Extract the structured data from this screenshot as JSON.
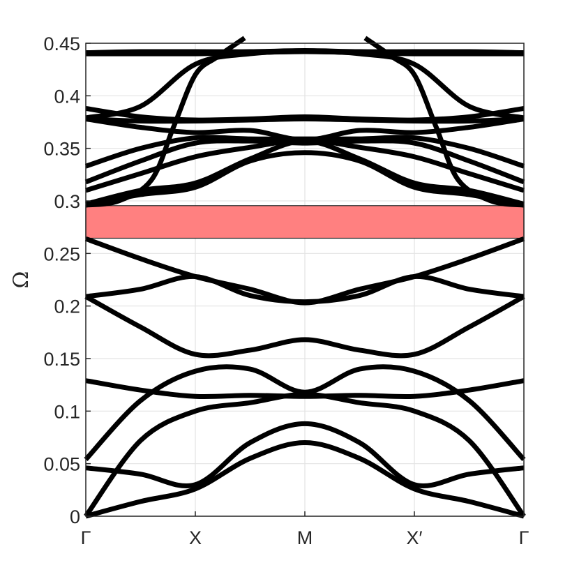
{
  "chart_data": {
    "type": "line",
    "title": "",
    "xlabel": "",
    "ylabel": "Ω",
    "ylim": [
      0,
      0.45
    ],
    "grid": true,
    "x_ticks": [
      {
        "pos": 0,
        "label": "Γ"
      },
      {
        "pos": 1,
        "label": "X"
      },
      {
        "pos": 2,
        "label": "M"
      },
      {
        "pos": 3,
        "label": "X′"
      },
      {
        "pos": 4,
        "label": "Γ"
      }
    ],
    "y_ticks": [
      {
        "value": 0,
        "label": "0"
      },
      {
        "value": 0.05,
        "label": "0.05"
      },
      {
        "value": 0.1,
        "label": "0.1"
      },
      {
        "value": 0.15,
        "label": "0.15"
      },
      {
        "value": 0.2,
        "label": "0.2"
      },
      {
        "value": 0.25,
        "label": "0.25"
      },
      {
        "value": 0.3,
        "label": "0.3"
      },
      {
        "value": 0.35,
        "label": "0.35"
      },
      {
        "value": 0.4,
        "label": "0.4"
      },
      {
        "value": 0.45,
        "label": "0.45"
      }
    ],
    "band_gap": {
      "ymin": 0.2645,
      "ymax": 0.2955,
      "color": "#ff8080"
    },
    "line_color": "#000000",
    "x": [
      0,
      0.5,
      1,
      1.5,
      2,
      2.5,
      3,
      3.5,
      4
    ],
    "series": [
      {
        "values": [
          0,
          0.014,
          0.026,
          0.055,
          0.07,
          0.055,
          0.026,
          0.014,
          0
        ]
      },
      {
        "values": [
          0,
          0.072,
          0.1,
          0.108,
          0.116,
          0.108,
          0.1,
          0.072,
          0
        ]
      },
      {
        "values": [
          0.046,
          0.04,
          0.03,
          0.07,
          0.088,
          0.07,
          0.03,
          0.04,
          0.046
        ]
      },
      {
        "values": [
          0.054,
          0.11,
          0.138,
          0.14,
          0.118,
          0.14,
          0.138,
          0.11,
          0.054
        ]
      },
      {
        "values": [
          0.129,
          0.12,
          0.114,
          0.115,
          0.114,
          0.115,
          0.114,
          0.12,
          0.129
        ]
      },
      {
        "values": [
          0.209,
          0.18,
          0.154,
          0.158,
          0.168,
          0.158,
          0.154,
          0.18,
          0.209
        ]
      },
      {
        "values": [
          0.209,
          0.216,
          0.228,
          0.21,
          0.204,
          0.21,
          0.228,
          0.216,
          0.209
        ]
      },
      {
        "values": [
          0.264,
          0.245,
          0.228,
          0.216,
          0.203,
          0.216,
          0.228,
          0.245,
          0.264
        ]
      },
      {
        "values": [
          0.296,
          0.306,
          0.313,
          0.338,
          0.346,
          0.338,
          0.313,
          0.306,
          0.296
        ]
      },
      {
        "values": [
          0.297,
          0.31,
          0.317,
          0.34,
          0.357,
          0.34,
          0.317,
          0.31,
          0.297
        ]
      },
      {
        "values": [
          0.31,
          0.326,
          0.342,
          0.351,
          0.358,
          0.351,
          0.342,
          0.326,
          0.31
        ]
      },
      {
        "values": [
          0.318,
          0.338,
          0.355,
          0.357,
          0.355,
          0.357,
          0.355,
          0.338,
          0.318
        ]
      },
      {
        "values": [
          0.333,
          0.35,
          0.36,
          0.359,
          0.359,
          0.359,
          0.36,
          0.35,
          0.333
        ]
      },
      {
        "values": [
          0.378,
          0.37,
          0.365,
          0.367,
          0.358,
          0.367,
          0.365,
          0.37,
          0.378
        ]
      },
      {
        "values": [
          0.378,
          0.376,
          0.376,
          0.377,
          0.378,
          0.377,
          0.376,
          0.376,
          0.378
        ]
      },
      {
        "values": [
          0.388,
          0.38,
          0.377,
          0.378,
          0.38,
          0.378,
          0.377,
          0.38,
          0.388
        ]
      },
      {
        "values": [
          0.44,
          0.44,
          0.44,
          0.441,
          0.442,
          0.441,
          0.44,
          0.44,
          0.44
        ]
      },
      {
        "values": [
          0.441,
          0.442,
          0.442,
          0.442,
          0.443,
          0.442,
          0.442,
          0.442,
          0.441
        ]
      },
      {
        "values": [
          0.379,
          0.39,
          0.43,
          0.44,
          0.442,
          0.44,
          0.43,
          0.39,
          0.379
        ]
      },
      {
        "x": [
          0,
          0.3,
          0.6,
          0.8,
          1,
          1.2,
          1.45
        ],
        "values": [
          0.296,
          0.3,
          0.32,
          0.37,
          0.42,
          0.437,
          0.455
        ]
      },
      {
        "x": [
          4,
          3.7,
          3.4,
          3.2,
          3,
          2.8,
          2.55
        ],
        "values": [
          0.296,
          0.3,
          0.32,
          0.37,
          0.42,
          0.437,
          0.455
        ]
      }
    ]
  }
}
